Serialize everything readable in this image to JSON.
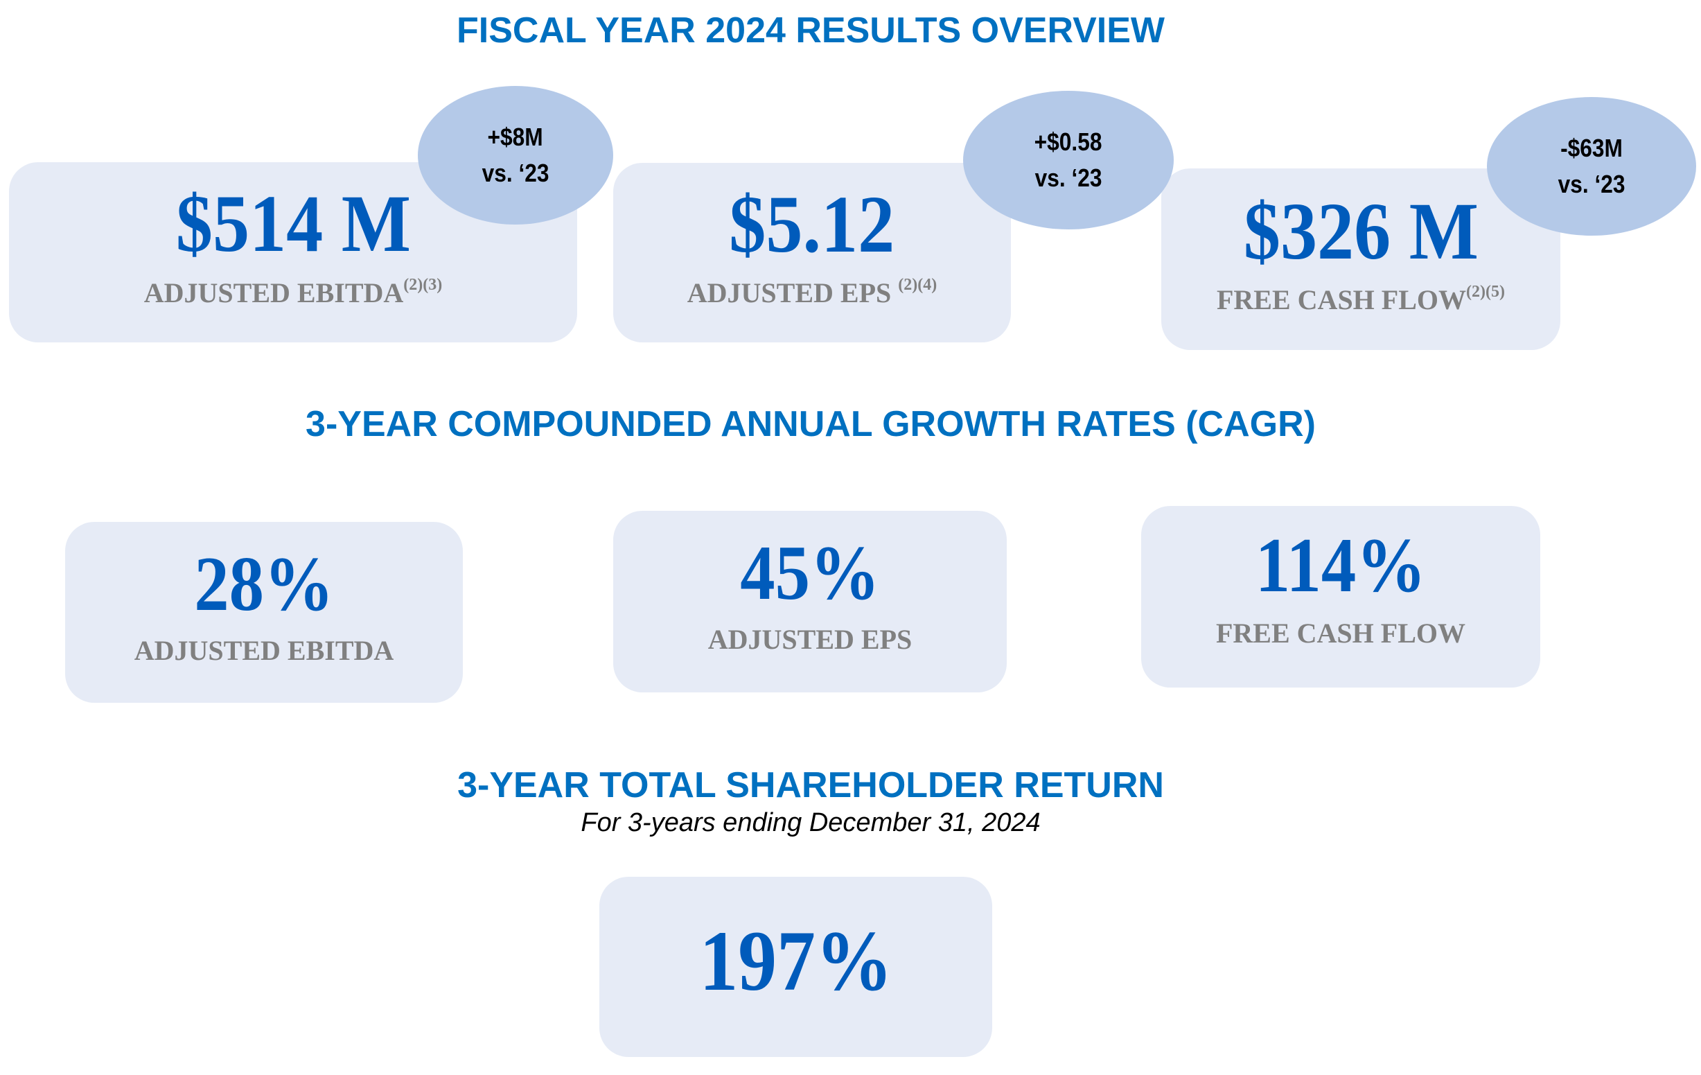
{
  "fiscal_overview": {
    "title": "FISCAL YEAR 2024 RESULTS OVERVIEW",
    "metrics": [
      {
        "value": "$514 M",
        "label": "ADJUSTED EBITDA",
        "footnote": "(2)(3)",
        "change": "+$8M",
        "change_ref": "vs. ‘23"
      },
      {
        "value": "$5.12",
        "label": "ADJUSTED EPS ",
        "footnote": "(2)(4)",
        "change": "+$0.58",
        "change_ref": "vs. ‘23"
      },
      {
        "value": "$326 M",
        "label": "FREE CASH FLOW",
        "footnote": "(2)(5)",
        "change": "-$63M",
        "change_ref": "vs. ‘23"
      }
    ]
  },
  "cagr": {
    "title": "3-YEAR COMPOUNDED ANNUAL GROWTH RATES (CAGR)",
    "metrics": [
      {
        "value": "28%",
        "label": "ADJUSTED EBITDA"
      },
      {
        "value": "45%",
        "label": "ADJUSTED EPS"
      },
      {
        "value": "114%",
        "label": "FREE CASH FLOW"
      }
    ]
  },
  "tsr": {
    "title": "3-YEAR TOTAL SHAREHOLDER RETURN",
    "subtitle": "For 3-years ending December 31, 2024",
    "value": "197%"
  },
  "colors": {
    "title": "#0070C0",
    "value": "#005BBB",
    "label": "#808080",
    "card": "#E6EBF6",
    "bubble": "#B4C9E8"
  }
}
